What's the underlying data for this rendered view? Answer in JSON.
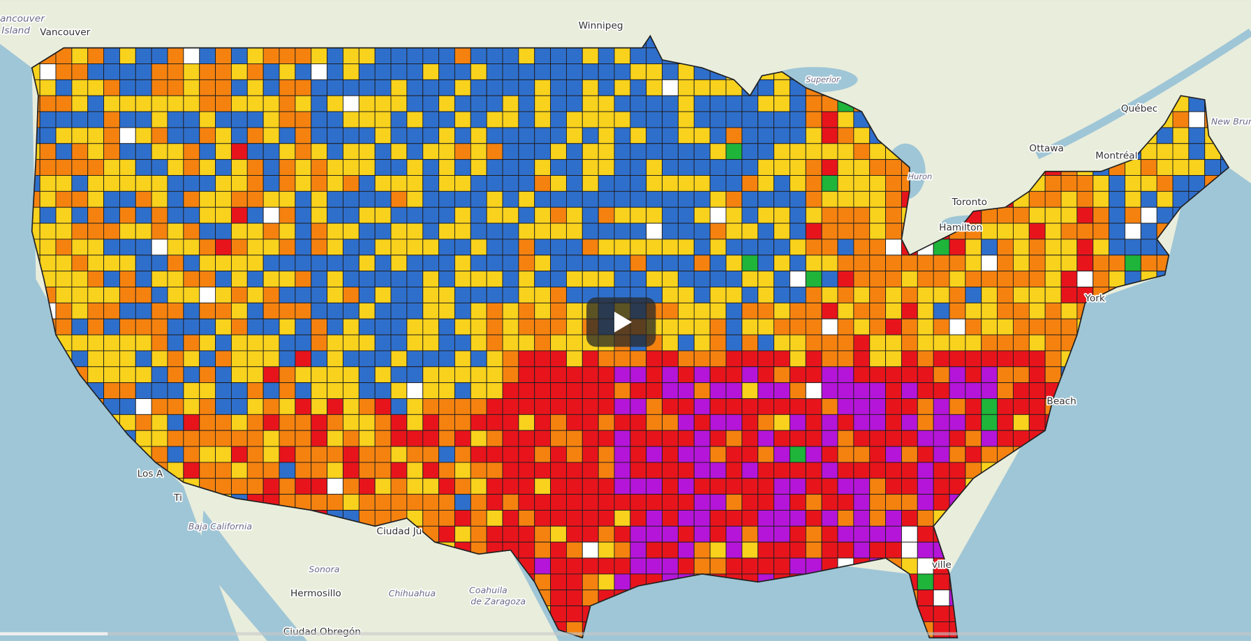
{
  "map": {
    "labels": [
      "ancouver",
      "Island",
      "Vancouver",
      "Winnipeg",
      "Superior",
      "Huron",
      "Québec",
      "New Brun",
      "Ottawa",
      "Montréal",
      "Toronto",
      "Hamilton",
      "York",
      "Beach",
      "ville",
      "Los A",
      "Ti",
      "Baja California",
      "Ciudad Ju",
      "Sonora",
      "Hermosillo",
      "Chihuahua",
      "Coahuila",
      "de Zaragoza",
      "Ciudad Obregón"
    ]
  }
}
